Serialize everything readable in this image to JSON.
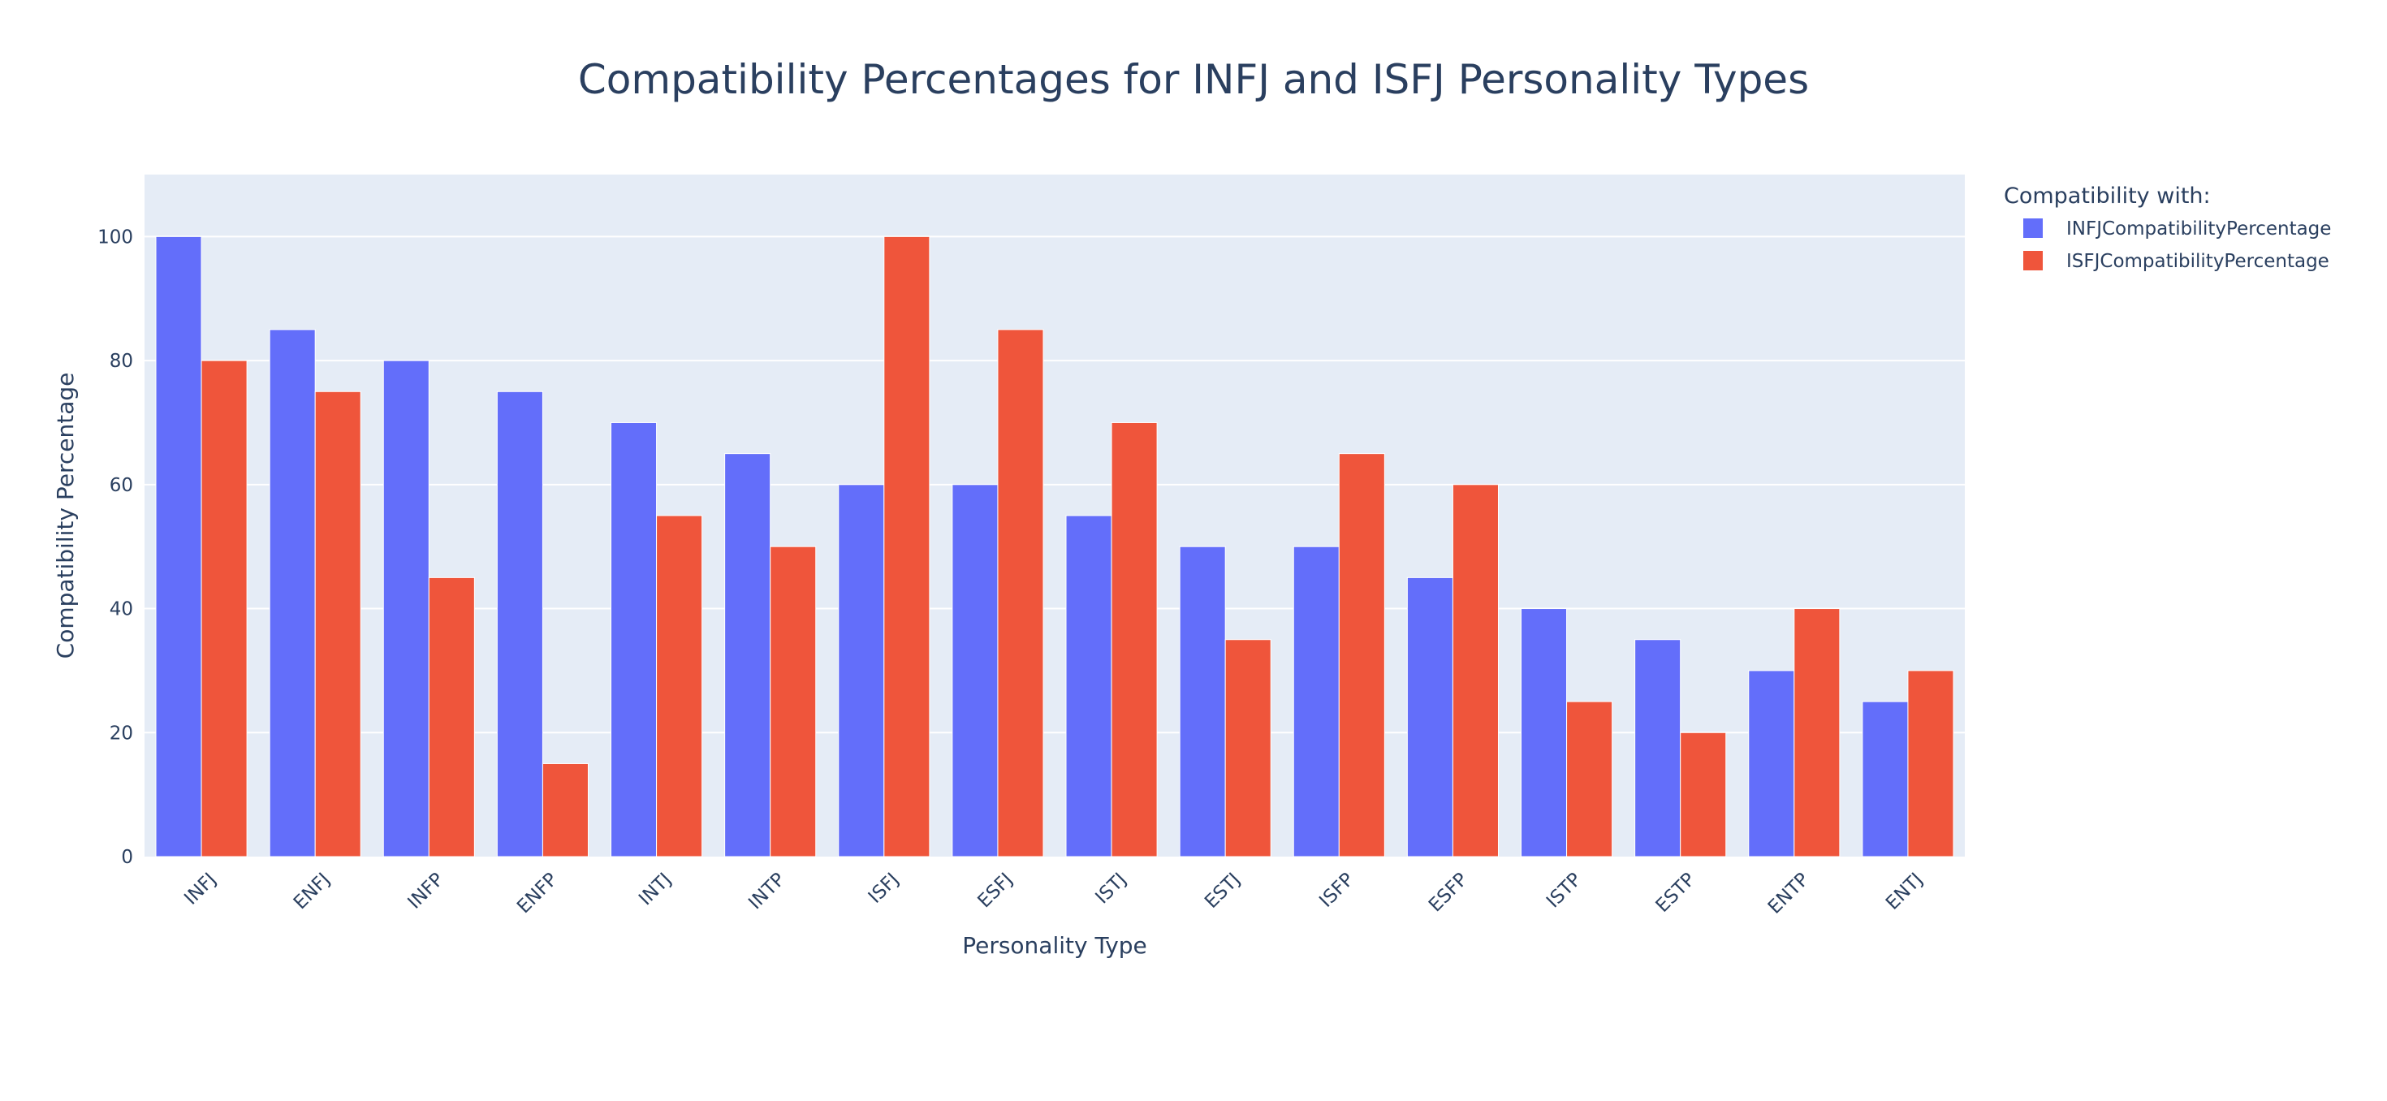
{
  "chart_data": {
    "type": "bar",
    "title": "Compatibility Percentages for INFJ and ISFJ Personality Types",
    "xlabel": "Personality Type",
    "ylabel": "Compatibility Percentage",
    "ylim": [
      0,
      110
    ],
    "yticks": [
      0,
      20,
      40,
      60,
      80,
      100
    ],
    "grid": true,
    "legend_position": "top-right",
    "legend_title": "Compatibility with:",
    "categories": [
      "INFJ",
      "ENFJ",
      "INFP",
      "ENFP",
      "INTJ",
      "INTP",
      "ISFJ",
      "ESFJ",
      "ISTJ",
      "ESTJ",
      "ISFP",
      "ESFP",
      "ISTP",
      "ESTP",
      "ENTP",
      "ENTJ"
    ],
    "series": [
      {
        "name": "INFJCompatibilityPercentage",
        "color": "#636efa",
        "values": [
          100,
          85,
          80,
          75,
          70,
          65,
          60,
          60,
          55,
          50,
          50,
          45,
          40,
          35,
          30,
          25
        ]
      },
      {
        "name": "ISFJCompatibilityPercentage",
        "color": "#ef553b",
        "values": [
          80,
          75,
          45,
          15,
          55,
          50,
          100,
          85,
          70,
          35,
          65,
          60,
          25,
          20,
          40,
          30
        ]
      }
    ],
    "colors": {
      "plot_background": "#e5ecf6",
      "grid": "#ffffff",
      "text": "#2a3f5f"
    }
  }
}
